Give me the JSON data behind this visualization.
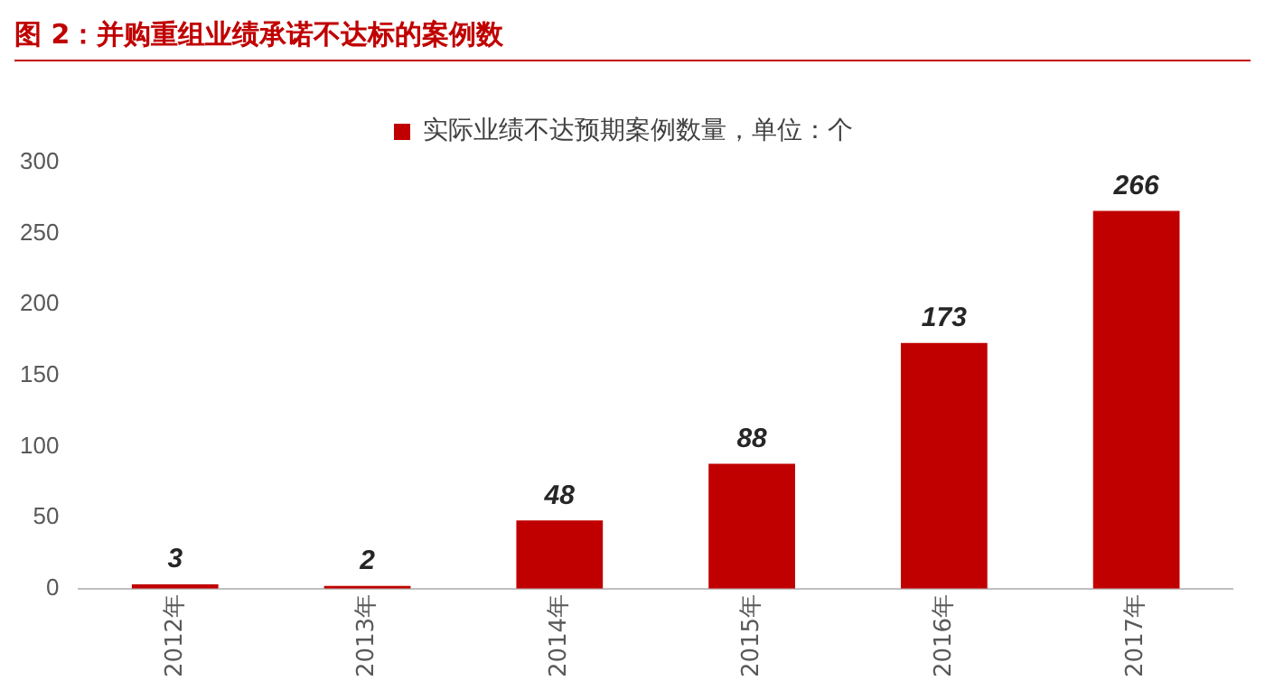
{
  "chart_data": {
    "type": "bar",
    "title": "图 2：并购重组业绩承诺不达标的案例数",
    "categories": [
      "2012年",
      "2013年",
      "2014年",
      "2015年",
      "2016年",
      "2017年"
    ],
    "series": [
      {
        "name": "实际业绩不达预期案例数量，单位：个",
        "color": "#c00000",
        "values": [
          3,
          2,
          48,
          88,
          173,
          266
        ]
      }
    ],
    "ylim": [
      0,
      300
    ],
    "yticks": [
      0,
      50,
      100,
      150,
      200,
      250,
      300
    ],
    "grid": false,
    "legend": "top",
    "data_labels": true
  }
}
